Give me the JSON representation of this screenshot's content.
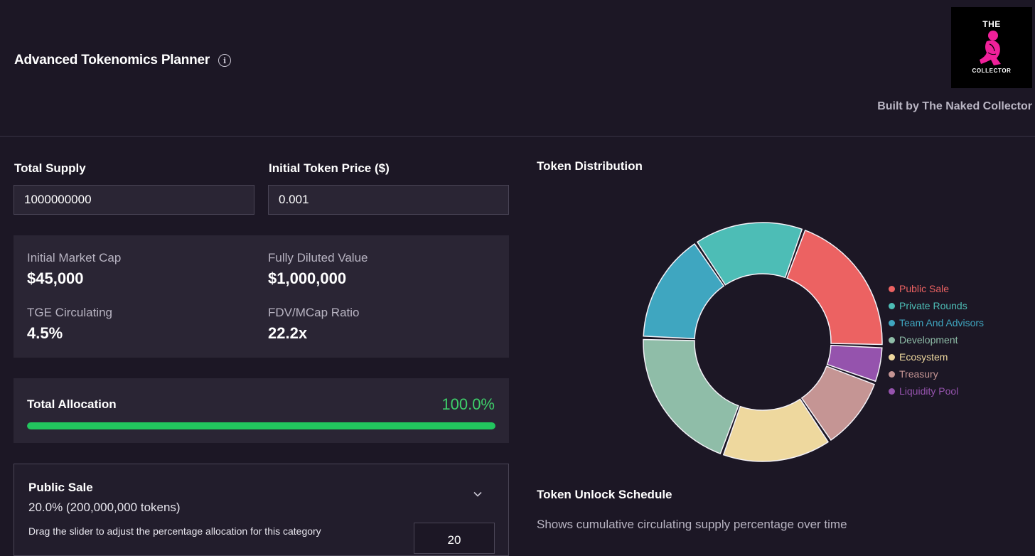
{
  "header": {
    "title": "Advanced Tokenomics Planner",
    "info_glyph": "i",
    "built_by": "Built by The Naked Collector",
    "logo": {
      "top_text": "THE",
      "bottom_text": "COLLECTOR"
    }
  },
  "inputs": {
    "total_supply_label": "Total Supply",
    "total_supply_value": "1000000000",
    "price_label": "Initial Token Price ($)",
    "price_value": "0.001"
  },
  "stats": {
    "market_cap_label": "Initial Market Cap",
    "market_cap_value": "$45,000",
    "fdv_label": "Fully Diluted Value",
    "fdv_value": "$1,000,000",
    "tge_label": "TGE Circulating",
    "tge_value": "4.5%",
    "ratio_label": "FDV/MCap Ratio",
    "ratio_value": "22.2x"
  },
  "allocation": {
    "label": "Total Allocation",
    "value_text": "100.0%",
    "percent": 100
  },
  "category": {
    "name": "Public Sale",
    "summary": "20.0% (200,000,000 tokens)",
    "help": "Drag the slider to adjust the percentage allocation for this category",
    "input_value": "20"
  },
  "distribution": {
    "title": "Token Distribution",
    "segments": [
      {
        "name": "Public Sale",
        "percent": 20,
        "color": "#ec6262"
      },
      {
        "name": "Liquidity Pool",
        "percent": 5,
        "color": "#9553ad"
      },
      {
        "name": "Treasury",
        "percent": 10,
        "color": "#c59594"
      },
      {
        "name": "Ecosystem",
        "percent": 15,
        "color": "#eed89e"
      },
      {
        "name": "Development",
        "percent": 20,
        "color": "#8fbda8"
      },
      {
        "name": "Team And Advisors",
        "percent": 15,
        "color": "#3fa6c0"
      },
      {
        "name": "Private Rounds",
        "percent": 15,
        "color": "#4dbdb6"
      }
    ],
    "legend": [
      {
        "name": "Public Sale",
        "color": "#ec6262"
      },
      {
        "name": "Private Rounds",
        "color": "#4dbdb6"
      },
      {
        "name": "Team And Advisors",
        "color": "#3fa6c0"
      },
      {
        "name": "Development",
        "color": "#8fbda8"
      },
      {
        "name": "Ecosystem",
        "color": "#eed89e"
      },
      {
        "name": "Treasury",
        "color": "#c59594"
      },
      {
        "name": "Liquidity Pool",
        "color": "#9553ad"
      }
    ]
  },
  "schedule": {
    "title": "Token Unlock Schedule",
    "description": "Shows cumulative circulating supply percentage over time"
  }
}
